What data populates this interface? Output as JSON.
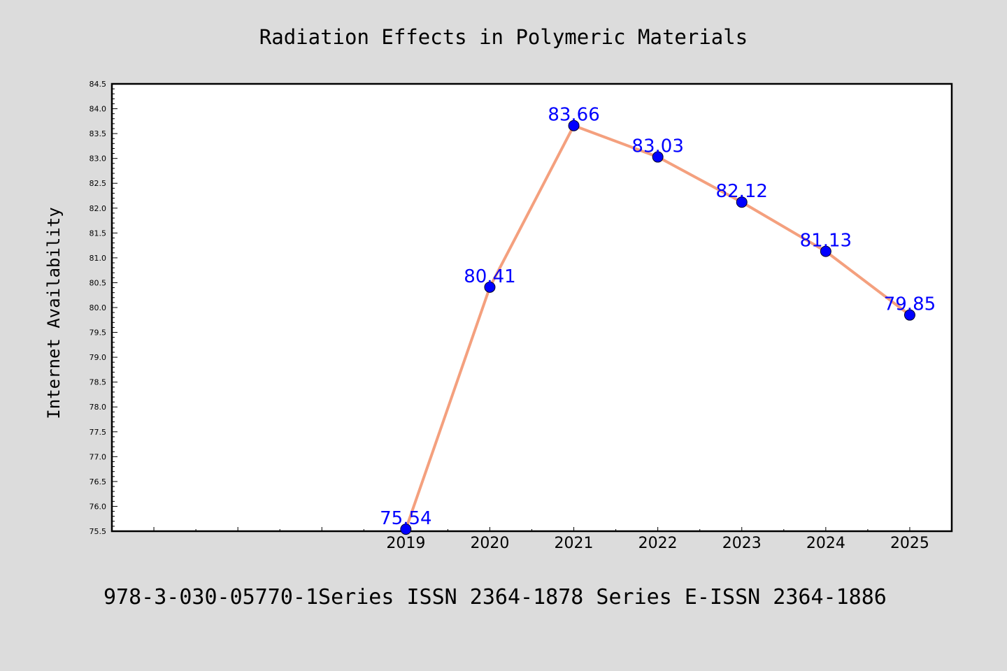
{
  "chart_data": {
    "type": "line",
    "title": "Radiation Effects in Polymeric Materials",
    "ylabel": "Internet Availability",
    "xlabel": "",
    "x": [
      2019,
      2020,
      2021,
      2022,
      2023,
      2024,
      2025
    ],
    "x_tick_labels": [
      "2019",
      "2020",
      "2021",
      "2022",
      "2023",
      "2024",
      "2025"
    ],
    "xlim": [
      2015.5,
      2025.5
    ],
    "values": [
      75.54,
      80.41,
      83.66,
      83.03,
      82.12,
      81.13,
      79.85
    ],
    "value_labels": [
      "75.54",
      "80.41",
      "83.66",
      "83.03",
      "82.12",
      "81.13",
      "79.85"
    ],
    "ylim": [
      75.5,
      84.5
    ],
    "y_ticks": [
      "75.5",
      "76.0",
      "76.5",
      "77.0",
      "77.5",
      "78.0",
      "78.5",
      "79.0",
      "79.5",
      "80.0",
      "80.5",
      "81.0",
      "81.5",
      "82.0",
      "82.5",
      "83.0",
      "83.5",
      "84.0",
      "84.5"
    ],
    "grid": false,
    "line_color": "#f4a07e",
    "marker_color": "#0000ff",
    "label_color": "#0000ff"
  },
  "footer": {
    "text": "978-3-030-05770-1Series ISSN 2364-1878 Series E-ISSN 2364-1886"
  },
  "colors": {
    "background": "#dcdcdc",
    "plot_background": "#ffffff"
  }
}
